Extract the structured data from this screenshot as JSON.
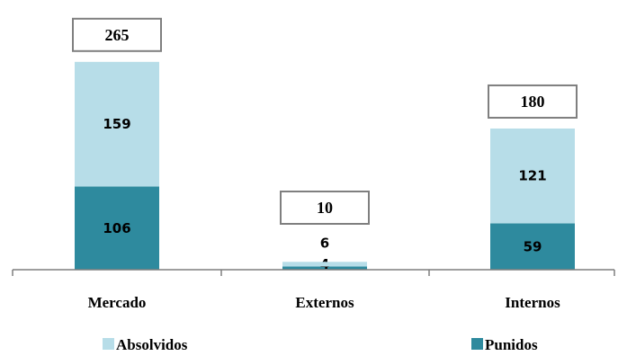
{
  "chart_data": {
    "type": "bar",
    "stacked": true,
    "categories": [
      "Mercado",
      "Externos",
      "Internos"
    ],
    "series": [
      {
        "name": "Punidos",
        "values": [
          106,
          4,
          59
        ],
        "color": "#2e8a9e"
      },
      {
        "name": "Absolvidos",
        "values": [
          159,
          6,
          121
        ],
        "color": "#b7dde8"
      }
    ],
    "totals": [
      "265",
      "10",
      "180"
    ],
    "legend": {
      "position": "bottom",
      "order": [
        "Absolvidos",
        "Punidos"
      ]
    },
    "ylim": [
      0,
      290
    ],
    "grid": false
  }
}
